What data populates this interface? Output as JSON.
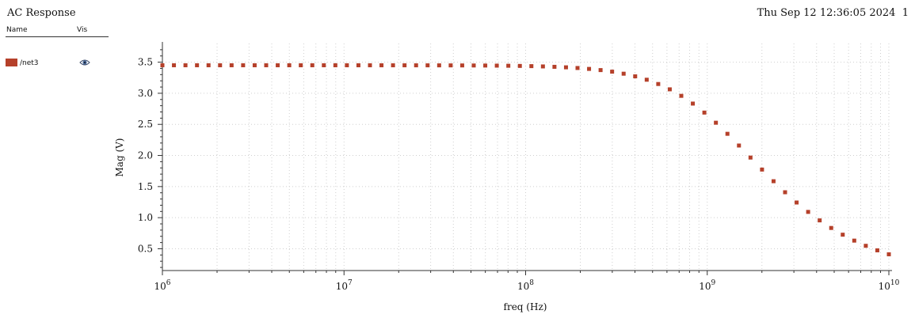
{
  "window": {
    "title": "AC Response",
    "timestamp": "Thu Sep 12 12:36:05 2024",
    "subwindow": "1"
  },
  "legend": {
    "header_name": "Name",
    "header_vis": "Vis",
    "items": [
      {
        "label": "/net3",
        "color": "#b5402a",
        "icon": "eye-icon"
      }
    ]
  },
  "chart_data": {
    "type": "scatter",
    "xscale": "log",
    "xlabel": "freq (Hz)",
    "ylabel": "Mag (V)",
    "xlim": [
      1000000,
      10000000000
    ],
    "ylim": [
      0.15,
      3.8
    ],
    "x_ticks": [
      {
        "base": "10",
        "exp": "6"
      },
      {
        "base": "10",
        "exp": "7"
      },
      {
        "base": "10",
        "exp": "8"
      },
      {
        "base": "10",
        "exp": "9"
      },
      {
        "base": "10",
        "exp": "10"
      }
    ],
    "y_ticks": [
      "0.5",
      "1.0",
      "1.5",
      "2.0",
      "2.5",
      "3.0",
      "3.5"
    ],
    "y_tick_values": [
      0.5,
      1.0,
      1.5,
      2.0,
      2.5,
      3.0,
      3.5
    ],
    "grid": true,
    "series": [
      {
        "name": "/net3",
        "color": "#b5402a",
        "x": [
          1000000,
          1000000000,
          2000000000,
          3000000000,
          5000000000,
          10000000000
        ],
        "y": [
          3.45,
          2.89,
          1.93,
          1.44,
          0.94,
          0.52
        ],
        "corner_hz": 1200000000,
        "dc_gain": 3.45
      }
    ]
  }
}
